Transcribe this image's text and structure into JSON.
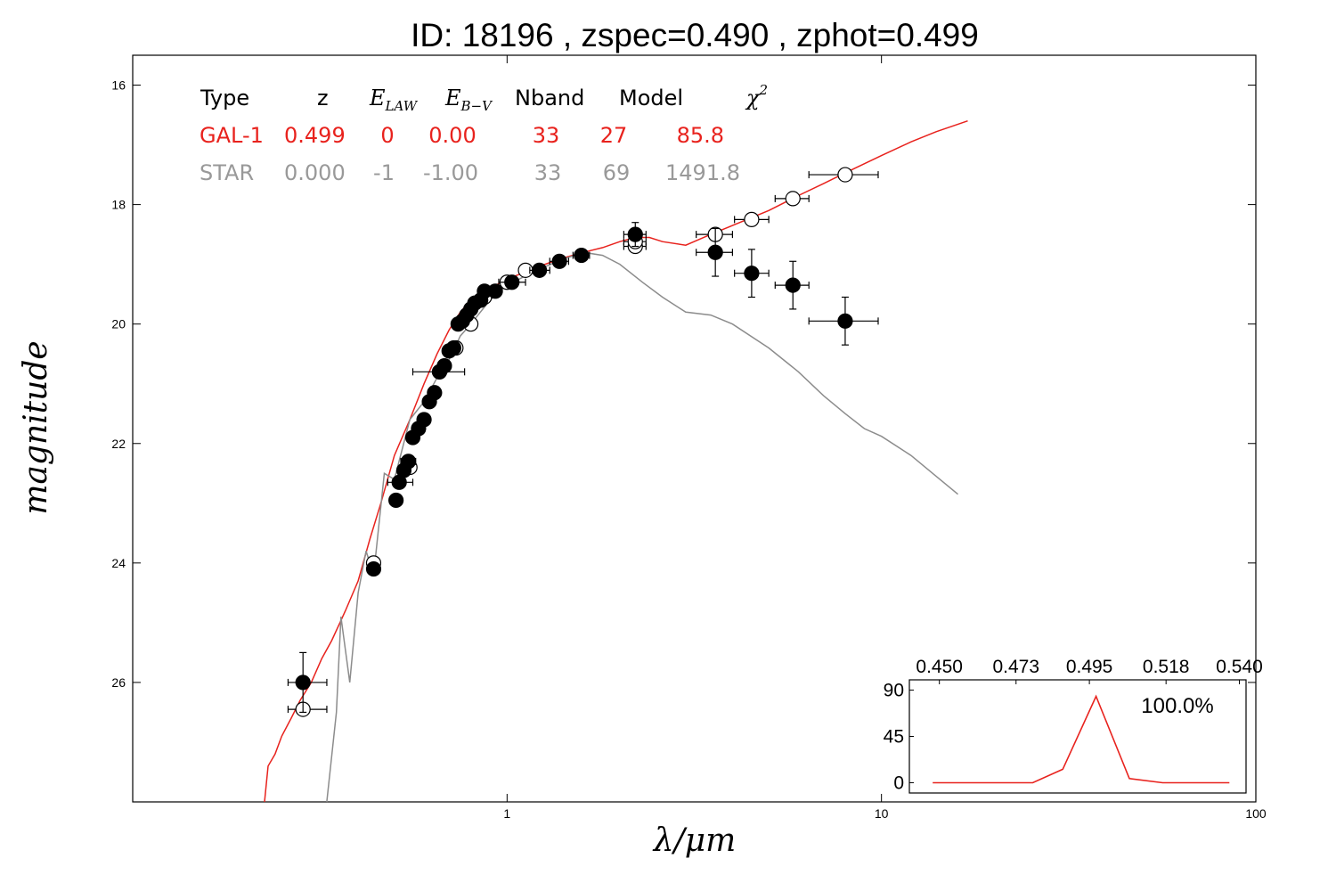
{
  "chart_data": {
    "type": "scatter",
    "title": "ID:  18196 , zspec=0.490 , zphot=0.499",
    "xlabel": "λ/μm",
    "ylabel": "magnitude",
    "xscale": "log",
    "xlim": [
      0.1,
      100
    ],
    "ylim": [
      28,
      15.5
    ],
    "y_inverted": true,
    "x_ticks": [
      "1",
      "10",
      "100"
    ],
    "y_ticks": [
      "16",
      "18",
      "20",
      "22",
      "24",
      "26"
    ],
    "legend_table": {
      "headers": [
        "Type",
        "z",
        "E",
        "E",
        "Nband",
        "Model",
        "χ"
      ],
      "header_subscripts": [
        "",
        "",
        "LAW",
        "B−V",
        "",
        "",
        ""
      ],
      "header_superscripts": [
        "",
        "",
        "",
        "",
        "",
        "",
        "2"
      ],
      "rows": [
        {
          "cells": [
            "GAL-1",
            "0.499",
            "0",
            "0.00",
            "33",
            "27",
            "85.8"
          ],
          "color": "#e8221d"
        },
        {
          "cells": [
            "STAR",
            "0.000",
            "-1",
            "-1.00",
            "33",
            "69",
            "1491.8"
          ],
          "color": "#999999"
        }
      ]
    },
    "series": [
      {
        "name": "GAL-1",
        "kind": "line",
        "color": "#e8221d",
        "points": [
          [
            0.225,
            28.0
          ],
          [
            0.23,
            27.4
          ],
          [
            0.24,
            27.2
          ],
          [
            0.25,
            26.9
          ],
          [
            0.265,
            26.6
          ],
          [
            0.28,
            26.3
          ],
          [
            0.3,
            26.0
          ],
          [
            0.32,
            25.6
          ],
          [
            0.34,
            25.3
          ],
          [
            0.37,
            24.8
          ],
          [
            0.4,
            24.3
          ],
          [
            0.43,
            23.6
          ],
          [
            0.46,
            23.0
          ],
          [
            0.5,
            22.2
          ],
          [
            0.55,
            21.6
          ],
          [
            0.6,
            21.0
          ],
          [
            0.65,
            20.5
          ],
          [
            0.7,
            20.1
          ],
          [
            0.75,
            19.8
          ],
          [
            0.8,
            19.6
          ],
          [
            0.9,
            19.4
          ],
          [
            1.0,
            19.25
          ],
          [
            1.2,
            19.05
          ],
          [
            1.4,
            18.9
          ],
          [
            1.6,
            18.8
          ],
          [
            1.8,
            18.72
          ],
          [
            2.0,
            18.62
          ],
          [
            2.2,
            18.55
          ],
          [
            2.4,
            18.55
          ],
          [
            2.6,
            18.62
          ],
          [
            3.0,
            18.68
          ],
          [
            3.5,
            18.5
          ],
          [
            4.0,
            18.35
          ],
          [
            5.0,
            18.1
          ],
          [
            6.0,
            17.85
          ],
          [
            7.0,
            17.65
          ],
          [
            8.0,
            17.47
          ],
          [
            10.0,
            17.18
          ],
          [
            12.0,
            16.95
          ],
          [
            14.0,
            16.78
          ],
          [
            17.0,
            16.6
          ]
        ]
      },
      {
        "name": "STAR",
        "kind": "line",
        "color": "#8c8c8c",
        "points": [
          [
            0.33,
            28.0
          ],
          [
            0.35,
            26.5
          ],
          [
            0.36,
            24.9
          ],
          [
            0.38,
            26.0
          ],
          [
            0.4,
            24.5
          ],
          [
            0.42,
            23.8
          ],
          [
            0.44,
            24.2
          ],
          [
            0.47,
            22.5
          ],
          [
            0.5,
            22.6
          ],
          [
            0.55,
            21.6
          ],
          [
            0.6,
            21.3
          ],
          [
            0.65,
            20.9
          ],
          [
            0.7,
            20.6
          ],
          [
            0.75,
            20.2
          ],
          [
            0.8,
            20.0
          ],
          [
            0.9,
            19.6
          ],
          [
            1.0,
            19.35
          ],
          [
            1.2,
            19.1
          ],
          [
            1.4,
            18.92
          ],
          [
            1.6,
            18.8
          ],
          [
            1.8,
            18.85
          ],
          [
            2.0,
            19.0
          ],
          [
            2.3,
            19.3
          ],
          [
            2.6,
            19.55
          ],
          [
            3.0,
            19.8
          ],
          [
            3.5,
            19.85
          ],
          [
            4.0,
            20.0
          ],
          [
            5.0,
            20.4
          ],
          [
            6.0,
            20.8
          ],
          [
            7.0,
            21.2
          ],
          [
            8.0,
            21.5
          ],
          [
            9.0,
            21.75
          ],
          [
            10.0,
            21.88
          ],
          [
            12.0,
            22.2
          ],
          [
            14.0,
            22.55
          ],
          [
            16.0,
            22.85
          ]
        ]
      },
      {
        "name": "observed",
        "kind": "filled-points",
        "points": [
          {
            "x": 0.285,
            "y": 26.0,
            "xerr": [
              0.26,
              0.33
            ],
            "yerr": 0.5
          },
          {
            "x": 0.44,
            "y": 24.1,
            "xerr": [
              0.43,
              0.45
            ],
            "yerr": 0.1
          },
          {
            "x": 0.505,
            "y": 22.95,
            "xerr": [
              0.49,
              0.52
            ],
            "yerr": 0.08
          },
          {
            "x": 0.515,
            "y": 22.65,
            "xerr": [
              0.48,
              0.56
            ],
            "yerr": 0.08
          },
          {
            "x": 0.53,
            "y": 22.45,
            "xerr": [
              0.51,
              0.55
            ],
            "yerr": 0.06
          },
          {
            "x": 0.545,
            "y": 22.3,
            "xerr": [
              0.52,
              0.57
            ],
            "yerr": 0.06
          },
          {
            "x": 0.56,
            "y": 21.9,
            "xerr": [
              0.54,
              0.58
            ],
            "yerr": 0.06
          },
          {
            "x": 0.58,
            "y": 21.75,
            "xerr": [
              0.56,
              0.6
            ],
            "yerr": 0.06
          },
          {
            "x": 0.6,
            "y": 21.6,
            "xerr": [
              0.58,
              0.62
            ],
            "yerr": 0.05
          },
          {
            "x": 0.62,
            "y": 21.3,
            "xerr": [
              0.6,
              0.64
            ],
            "yerr": 0.05
          },
          {
            "x": 0.64,
            "y": 21.15,
            "xerr": [
              0.62,
              0.66
            ],
            "yerr": 0.05
          },
          {
            "x": 0.66,
            "y": 20.8,
            "xerr": [
              0.56,
              0.77
            ],
            "yerr": 0.05
          },
          {
            "x": 0.68,
            "y": 20.7,
            "xerr": [
              0.66,
              0.7
            ],
            "yerr": 0.05
          },
          {
            "x": 0.7,
            "y": 20.45,
            "xerr": [
              0.68,
              0.72
            ],
            "yerr": 0.05
          },
          {
            "x": 0.72,
            "y": 20.4,
            "xerr": [
              0.7,
              0.74
            ],
            "yerr": 0.05
          },
          {
            "x": 0.74,
            "y": 20.0,
            "xerr": [
              0.72,
              0.76
            ],
            "yerr": 0.05
          },
          {
            "x": 0.76,
            "y": 19.95,
            "xerr": [
              0.74,
              0.78
            ],
            "yerr": 0.05
          },
          {
            "x": 0.78,
            "y": 19.85,
            "xerr": [
              0.76,
              0.8
            ],
            "yerr": 0.05
          },
          {
            "x": 0.8,
            "y": 19.75,
            "xerr": [
              0.78,
              0.82
            ],
            "yerr": 0.05
          },
          {
            "x": 0.82,
            "y": 19.65,
            "xerr": [
              0.8,
              0.84
            ],
            "yerr": 0.05
          },
          {
            "x": 0.85,
            "y": 19.6,
            "xerr": [
              0.83,
              0.87
            ],
            "yerr": 0.05
          },
          {
            "x": 0.87,
            "y": 19.45,
            "xerr": [
              0.85,
              0.89
            ],
            "yerr": 0.05
          },
          {
            "x": 0.93,
            "y": 19.45,
            "xerr": [
              0.9,
              0.96
            ],
            "yerr": 0.05
          },
          {
            "x": 1.03,
            "y": 19.3,
            "xerr": [
              0.95,
              1.12
            ],
            "yerr": 0.05
          },
          {
            "x": 1.22,
            "y": 19.1,
            "xerr": [
              1.15,
              1.3
            ],
            "yerr": 0.05
          },
          {
            "x": 1.38,
            "y": 18.95,
            "xerr": [
              1.3,
              1.46
            ],
            "yerr": 0.05
          },
          {
            "x": 1.58,
            "y": 18.85,
            "xerr": [
              1.5,
              1.66
            ],
            "yerr": 0.05
          },
          {
            "x": 2.2,
            "y": 18.5,
            "xerr": [
              2.05,
              2.35
            ],
            "yerr": 0.2
          },
          {
            "x": 3.6,
            "y": 18.8,
            "xerr": [
              3.2,
              4.0
            ],
            "yerr": 0.4
          },
          {
            "x": 4.5,
            "y": 19.15,
            "xerr": [
              4.05,
              5.0
            ],
            "yerr": 0.4
          },
          {
            "x": 5.8,
            "y": 19.35,
            "xerr": [
              5.2,
              6.4
            ],
            "yerr": 0.4
          },
          {
            "x": 8.0,
            "y": 19.95,
            "xerr": [
              6.4,
              9.8
            ],
            "yerr": 0.4
          }
        ]
      },
      {
        "name": "model",
        "kind": "open-points",
        "points": [
          {
            "x": 0.285,
            "y": 26.45,
            "xerr": [
              0.26,
              0.33
            ]
          },
          {
            "x": 0.44,
            "y": 24.0,
            "xerr": [
              0.43,
              0.45
            ]
          },
          {
            "x": 0.55,
            "y": 22.4
          },
          {
            "x": 0.66,
            "y": 20.8
          },
          {
            "x": 0.73,
            "y": 20.4
          },
          {
            "x": 0.8,
            "y": 20.0
          },
          {
            "x": 0.87,
            "y": 19.55
          },
          {
            "x": 1.0,
            "y": 19.3
          },
          {
            "x": 1.12,
            "y": 19.1
          },
          {
            "x": 2.2,
            "y": 18.7,
            "xerr": [
              2.05,
              2.35
            ]
          },
          {
            "x": 2.2,
            "y": 18.62,
            "xerr": [
              2.05,
              2.35
            ]
          },
          {
            "x": 3.6,
            "y": 18.5,
            "xerr": [
              3.2,
              4.0
            ]
          },
          {
            "x": 4.5,
            "y": 18.25,
            "xerr": [
              4.05,
              5.0
            ]
          },
          {
            "x": 5.8,
            "y": 17.9,
            "xerr": [
              5.2,
              6.4
            ]
          },
          {
            "x": 8.0,
            "y": 17.5,
            "xerr": [
              6.4,
              9.8
            ]
          }
        ]
      }
    ],
    "inset": {
      "type": "line",
      "label": "100.0%",
      "top_ticks": [
        "0.450",
        "0.473",
        "0.495",
        "0.518",
        "0.540"
      ],
      "y_ticks": [
        "0",
        "45",
        "90"
      ],
      "xlim": [
        0.441,
        0.542
      ],
      "ylim": [
        -10,
        100
      ],
      "color": "#e8221d",
      "points": [
        [
          0.448,
          0
        ],
        [
          0.458,
          0
        ],
        [
          0.478,
          0
        ],
        [
          0.487,
          13
        ],
        [
          0.497,
          84
        ],
        [
          0.507,
          4
        ],
        [
          0.517,
          0
        ],
        [
          0.527,
          0
        ],
        [
          0.537,
          0
        ]
      ]
    }
  }
}
